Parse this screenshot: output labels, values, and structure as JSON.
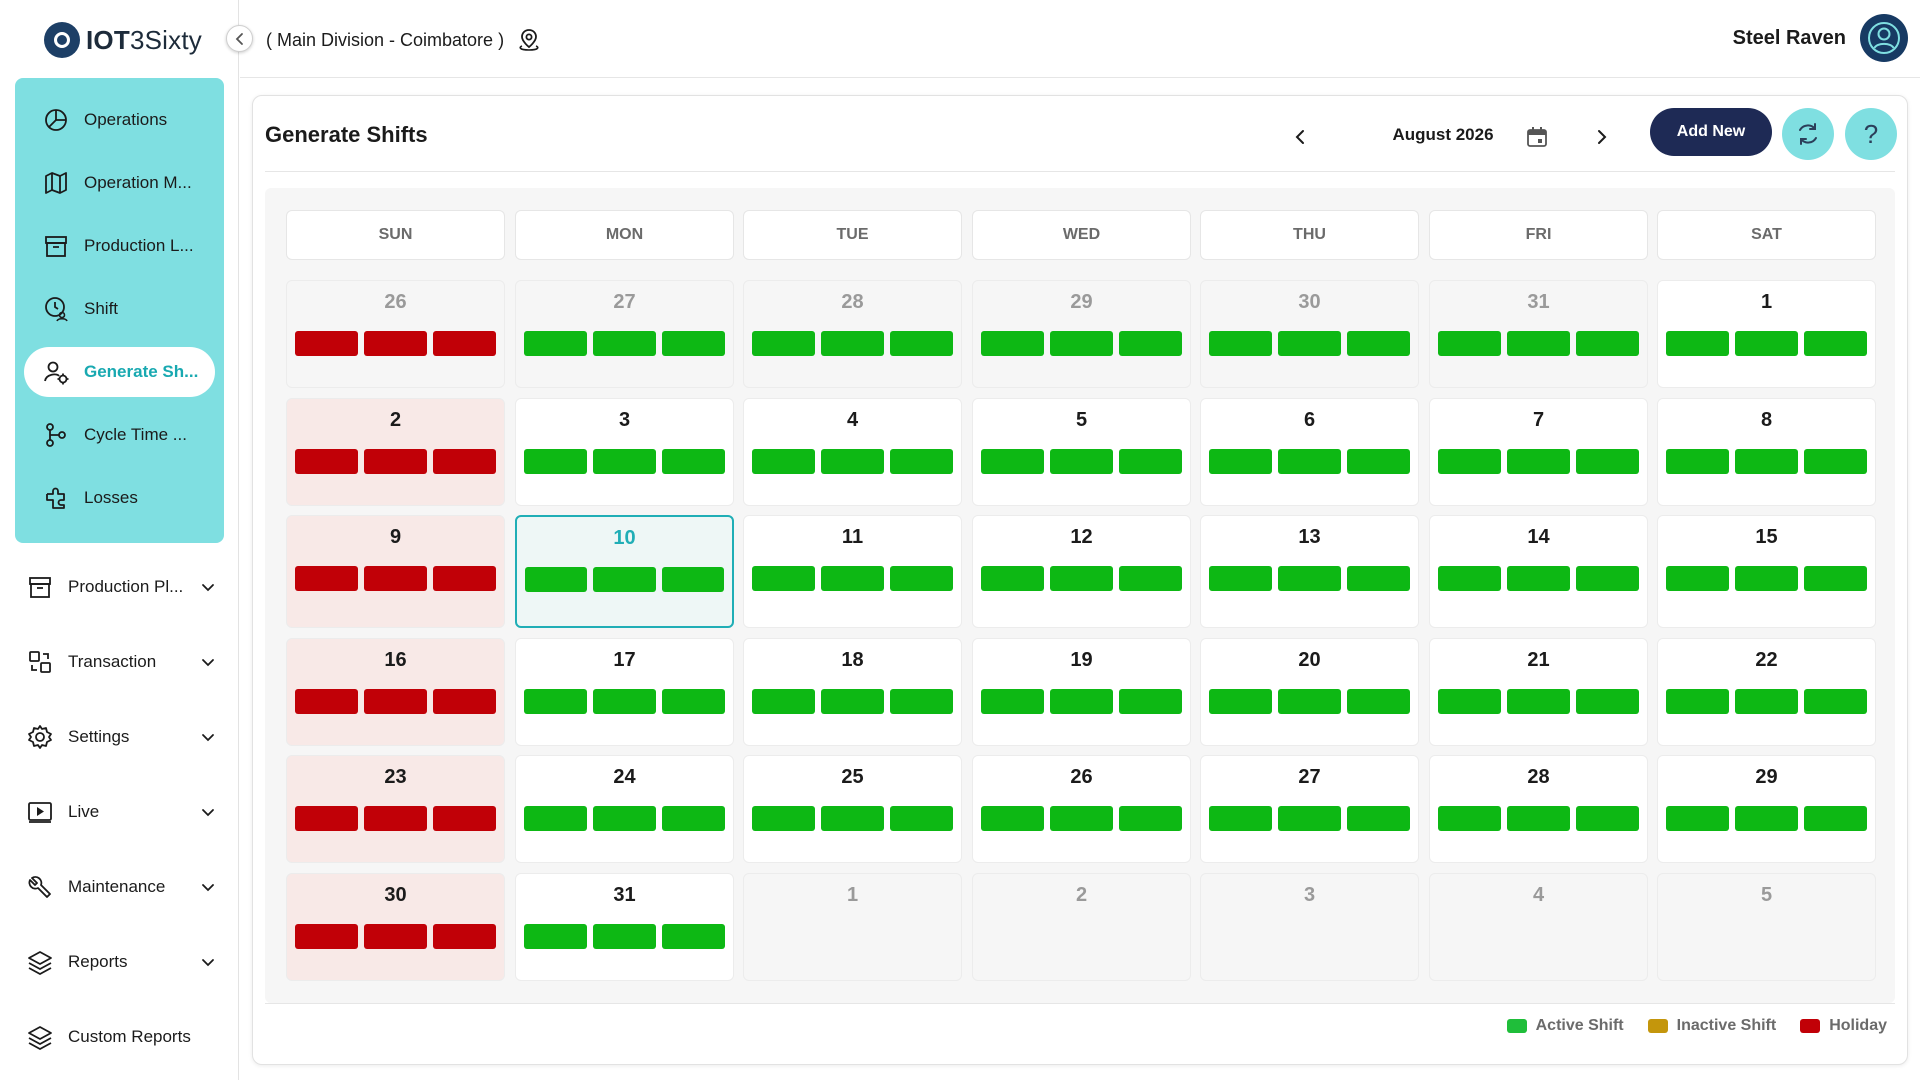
{
  "app": {
    "brand_bold": "IOT",
    "brand_rest": "3Sixty"
  },
  "topbar": {
    "division": "( Main Division - Coimbatore )",
    "user_name": "Steel Raven"
  },
  "sidebar": {
    "sub_items": [
      {
        "label": "Operations",
        "icon": "pie-chart-icon"
      },
      {
        "label": "Operation M...",
        "icon": "map-icon"
      },
      {
        "label": "Production L...",
        "icon": "archive-box-icon"
      },
      {
        "label": "Shift",
        "icon": "clock-user-icon"
      },
      {
        "label": "Generate Sh...",
        "icon": "user-gear-icon",
        "active": true
      },
      {
        "label": "Cycle Time ...",
        "icon": "flow-icon"
      },
      {
        "label": "Losses",
        "icon": "puzzle-icon"
      }
    ],
    "menu_items": [
      {
        "label": "Production Pl...",
        "icon": "archive-box-icon"
      },
      {
        "label": "Transaction",
        "icon": "transfer-icon"
      },
      {
        "label": "Settings",
        "icon": "gear-icon"
      },
      {
        "label": "Live",
        "icon": "play-screen-icon"
      },
      {
        "label": "Maintenance",
        "icon": "wrench-icon"
      },
      {
        "label": "Reports",
        "icon": "layers-icon"
      },
      {
        "label": "Custom Reports",
        "icon": "layers-icon"
      }
    ]
  },
  "page": {
    "title": "Generate Shifts",
    "month_label": "August 2026",
    "add_new_label": "Add New",
    "help_label": "?"
  },
  "calendar": {
    "weekdays": [
      "SUN",
      "MON",
      "TUE",
      "WED",
      "THU",
      "FRI",
      "SAT"
    ],
    "weeks": [
      [
        {
          "d": "26",
          "other": true,
          "shifts": "holiday"
        },
        {
          "d": "27",
          "other": true,
          "shifts": "active"
        },
        {
          "d": "28",
          "other": true,
          "shifts": "active"
        },
        {
          "d": "29",
          "other": true,
          "shifts": "active"
        },
        {
          "d": "30",
          "other": true,
          "shifts": "active"
        },
        {
          "d": "31",
          "other": true,
          "shifts": "active"
        },
        {
          "d": "1",
          "shifts": "active"
        }
      ],
      [
        {
          "d": "2",
          "shifts": "holiday"
        },
        {
          "d": "3",
          "shifts": "active"
        },
        {
          "d": "4",
          "shifts": "active"
        },
        {
          "d": "5",
          "shifts": "active"
        },
        {
          "d": "6",
          "shifts": "active"
        },
        {
          "d": "7",
          "shifts": "active"
        },
        {
          "d": "8",
          "shifts": "active"
        }
      ],
      [
        {
          "d": "9",
          "shifts": "holiday"
        },
        {
          "d": "10",
          "today": true,
          "shifts": "active"
        },
        {
          "d": "11",
          "shifts": "active"
        },
        {
          "d": "12",
          "shifts": "active"
        },
        {
          "d": "13",
          "shifts": "active"
        },
        {
          "d": "14",
          "shifts": "active"
        },
        {
          "d": "15",
          "shifts": "active"
        }
      ],
      [
        {
          "d": "16",
          "shifts": "holiday"
        },
        {
          "d": "17",
          "shifts": "active"
        },
        {
          "d": "18",
          "shifts": "active"
        },
        {
          "d": "19",
          "shifts": "active"
        },
        {
          "d": "20",
          "shifts": "active"
        },
        {
          "d": "21",
          "shifts": "active"
        },
        {
          "d": "22",
          "shifts": "active"
        }
      ],
      [
        {
          "d": "23",
          "shifts": "holiday"
        },
        {
          "d": "24",
          "shifts": "active"
        },
        {
          "d": "25",
          "shifts": "active"
        },
        {
          "d": "26",
          "shifts": "active"
        },
        {
          "d": "27",
          "shifts": "active"
        },
        {
          "d": "28",
          "shifts": "active"
        },
        {
          "d": "29",
          "shifts": "active"
        }
      ],
      [
        {
          "d": "30",
          "shifts": "holiday"
        },
        {
          "d": "31",
          "shifts": "active"
        },
        {
          "d": "1",
          "other": true,
          "shifts": "none"
        },
        {
          "d": "2",
          "other": true,
          "shifts": "none"
        },
        {
          "d": "3",
          "other": true,
          "shifts": "none"
        },
        {
          "d": "4",
          "other": true,
          "shifts": "none"
        },
        {
          "d": "5",
          "other": true,
          "shifts": "none"
        }
      ]
    ]
  },
  "legend": [
    {
      "label": "Active Shift",
      "color": "#1fbe3a"
    },
    {
      "label": "Inactive Shift",
      "color": "#c4960c"
    },
    {
      "label": "Holiday",
      "color": "#c10007"
    }
  ],
  "colors": {
    "accent": "#7fdfe1",
    "active_shift": "#0db814",
    "holiday": "#c10007",
    "today_border": "#20aeb6",
    "add_new_bg": "#1e2a55"
  }
}
